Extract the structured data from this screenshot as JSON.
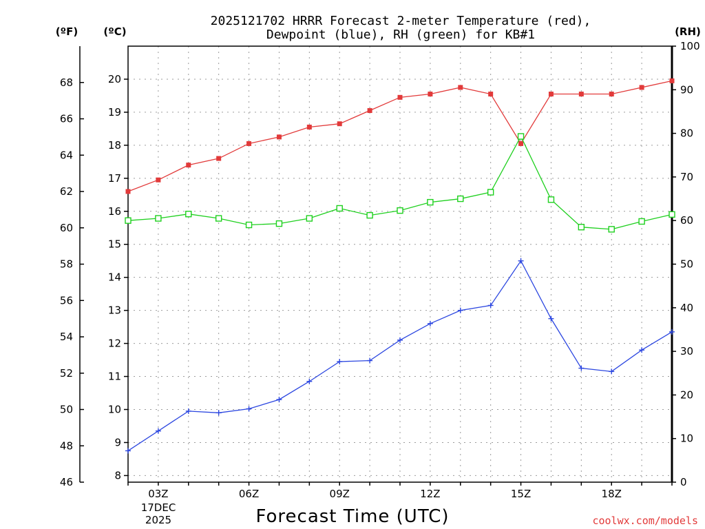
{
  "chart_data": {
    "type": "line",
    "title_line1": "2025121702 HRRR Forecast 2-meter Temperature (red),",
    "title_line2": "Dewpoint (blue), RH (green) for KB#1",
    "unit_f": "(ºF)",
    "unit_c": "(ºC)",
    "unit_rh": "(RH)",
    "xlabel": "Forecast Time (UTC)",
    "date_label_1": "17DEC",
    "date_label_2": "2025",
    "credit": "coolwx.com/models",
    "x_hours": [
      2,
      3,
      4,
      5,
      6,
      7,
      8,
      9,
      10,
      11,
      12,
      13,
      14,
      15,
      16,
      17,
      18,
      19,
      20
    ],
    "xlim": [
      2,
      20
    ],
    "x_ticks": [
      {
        "hour": 3,
        "label": "03Z"
      },
      {
        "hour": 6,
        "label": "06Z"
      },
      {
        "hour": 9,
        "label": "09Z"
      },
      {
        "hour": 12,
        "label": "12Z"
      },
      {
        "hour": 15,
        "label": "15Z"
      },
      {
        "hour": 18,
        "label": "18Z"
      }
    ],
    "celsius_axis": {
      "range": [
        7.8,
        21.0
      ],
      "ticks": [
        "8",
        "9",
        "10",
        "11",
        "12",
        "13",
        "14",
        "15",
        "16",
        "17",
        "18",
        "19",
        "20"
      ]
    },
    "fahrenheit_axis": {
      "range": [
        46,
        70
      ],
      "ticks": [
        "46",
        "48",
        "50",
        "52",
        "54",
        "56",
        "58",
        "60",
        "62",
        "64",
        "66",
        "68"
      ]
    },
    "rh_axis": {
      "range": [
        0,
        100
      ],
      "ticks": [
        "0",
        "10",
        "20",
        "30",
        "40",
        "50",
        "60",
        "70",
        "80",
        "90",
        "100"
      ]
    },
    "series": [
      {
        "name": "Temperature",
        "color": "#e23a3a",
        "marker": "filled-square",
        "axis": "celsius",
        "values": [
          16.6,
          16.95,
          17.4,
          17.6,
          18.05,
          18.25,
          18.55,
          18.65,
          19.05,
          19.45,
          19.55,
          19.75,
          19.55,
          18.05,
          19.55,
          19.55,
          19.55,
          19.75,
          19.95
        ]
      },
      {
        "name": "Dewpoint",
        "color": "#2b46e0",
        "marker": "plus",
        "axis": "celsius",
        "values": [
          8.75,
          9.35,
          9.95,
          9.9,
          10.02,
          10.3,
          10.85,
          11.45,
          11.48,
          12.1,
          12.6,
          13.0,
          13.15,
          14.5,
          12.75,
          11.25,
          11.15,
          11.8,
          12.35
        ]
      },
      {
        "name": "RH",
        "color": "#1ed01e",
        "marker": "open-square",
        "axis": "rh",
        "values": [
          60.0,
          60.5,
          61.5,
          60.5,
          59.0,
          59.3,
          60.5,
          62.8,
          61.2,
          62.3,
          64.2,
          65.0,
          66.5,
          79.3,
          64.8,
          58.5,
          58.0,
          59.8,
          61.4
        ]
      }
    ]
  }
}
